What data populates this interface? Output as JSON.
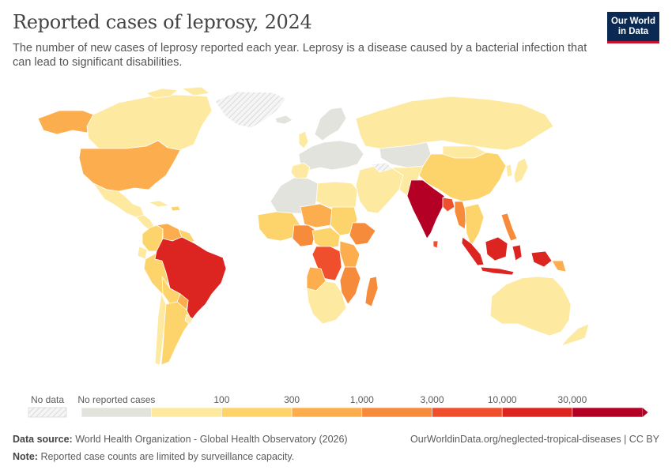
{
  "header": {
    "title": "Reported cases of leprosy, 2024",
    "subtitle": "The number of new cases of leprosy reported each year. Leprosy is a disease caused by a bacterial infection that can lead to significant disabilities."
  },
  "logo": {
    "line1": "Our World",
    "line2": "in Data"
  },
  "legend": {
    "no_data_label": "No data",
    "bins": [
      {
        "label": "No reported cases",
        "color": "#e1e3dc"
      },
      {
        "label": "",
        "color": "#fde9a0"
      },
      {
        "label": "100",
        "color": "#fdd46b"
      },
      {
        "label": "300",
        "color": "#fcae4e"
      },
      {
        "label": "1,000",
        "color": "#f78b3c"
      },
      {
        "label": "3,000",
        "color": "#f04f2e"
      },
      {
        "label": "10,000",
        "color": "#dc2421"
      },
      {
        "label": "30,000",
        "color": "#b30024"
      }
    ]
  },
  "colors": {
    "ocean": "#ffffff",
    "border": "#ffffff",
    "no_data": "#f2f2f2",
    "no_cases": "#e1e3dc",
    "b1": "#fde9a0",
    "b2": "#fdd46b",
    "b3": "#fcae4e",
    "b4": "#f78b3c",
    "b5": "#f04f2e",
    "b6": "#dc2421",
    "b7": "#b30024"
  },
  "footer": {
    "source_label": "Data source:",
    "source_text": "World Health Organization - Global Health Observatory (2026)",
    "url_text": "OurWorldinData.org/neglected-tropical-diseases | CC BY",
    "note_label": "Note:",
    "note_text": "Reported case counts are limited by surveillance capacity."
  }
}
